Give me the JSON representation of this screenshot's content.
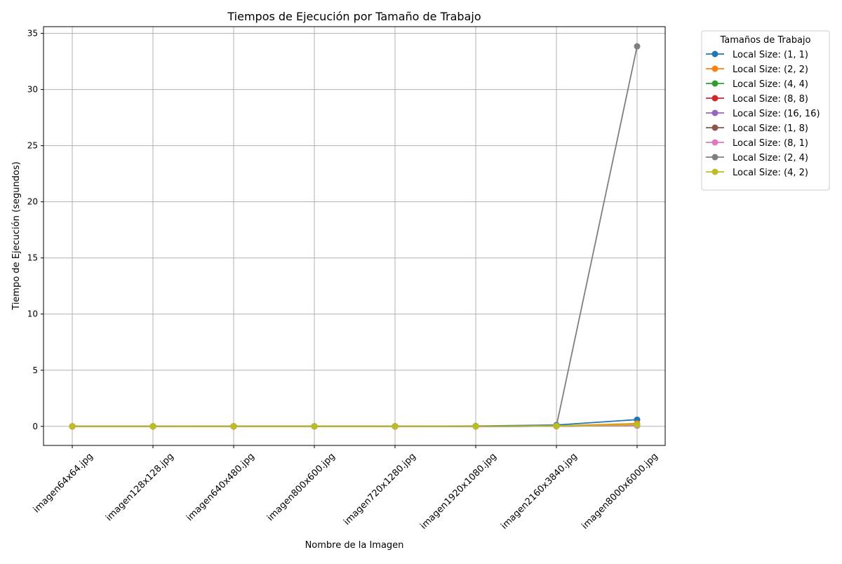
{
  "chart_data": {
    "type": "line",
    "title": "Tiempos de Ejecución por Tamaño de Trabajo",
    "xlabel": "Nombre de la Imagen",
    "ylabel": "Tiempo de Ejecución (segundos)",
    "ylim": [
      -1.7,
      35.6
    ],
    "yticks": [
      0,
      5,
      10,
      15,
      20,
      25,
      30,
      35
    ],
    "grid": true,
    "legend_title": "Tamaños de Trabajo",
    "legend_position": "outside-top-right",
    "categories": [
      "imagen64x64.jpg",
      "imagen128x128.jpg",
      "imagen640x480.jpg",
      "imagen800x600.jpg",
      "imagen720x1280.jpg",
      "imagen1920x1080.jpg",
      "imagen2160x3840.jpg",
      "imagen8000x6000.jpg"
    ],
    "series": [
      {
        "name": "Local Size: (1, 1)",
        "color": "#1f77b4",
        "values": [
          0.0,
          0.0,
          0.01,
          0.01,
          0.01,
          0.03,
          0.12,
          0.6
        ]
      },
      {
        "name": "Local Size: (2, 2)",
        "color": "#ff7f0e",
        "values": [
          0.0,
          0.0,
          0.0,
          0.0,
          0.0,
          0.01,
          0.04,
          0.25
        ]
      },
      {
        "name": "Local Size: (4, 4)",
        "color": "#2ca02c",
        "values": [
          0.0,
          0.0,
          0.0,
          0.0,
          0.0,
          0.0,
          0.02,
          0.1
        ]
      },
      {
        "name": "Local Size: (8, 8)",
        "color": "#d62728",
        "values": [
          0.0,
          0.0,
          0.0,
          0.0,
          0.0,
          0.0,
          0.02,
          0.08
        ]
      },
      {
        "name": "Local Size: (16, 16)",
        "color": "#9467bd",
        "values": [
          0.0,
          0.0,
          0.0,
          0.0,
          0.0,
          0.0,
          0.02,
          0.08
        ]
      },
      {
        "name": "Local Size: (1, 8)",
        "color": "#8c564b",
        "values": [
          0.0,
          0.0,
          0.0,
          0.0,
          0.0,
          0.0,
          0.02,
          0.1
        ]
      },
      {
        "name": "Local Size: (8, 1)",
        "color": "#e377c2",
        "values": [
          0.0,
          0.0,
          0.0,
          0.0,
          0.0,
          0.0,
          0.02,
          0.1
        ]
      },
      {
        "name": "Local Size: (2, 4)",
        "color": "#7f7f7f",
        "values": [
          0.0,
          0.0,
          0.0,
          0.0,
          0.0,
          0.01,
          0.03,
          33.85
        ]
      },
      {
        "name": "Local Size: (4, 2)",
        "color": "#bcbd22",
        "values": [
          0.0,
          0.0,
          0.0,
          0.0,
          0.0,
          0.01,
          0.03,
          0.15
        ]
      }
    ]
  }
}
